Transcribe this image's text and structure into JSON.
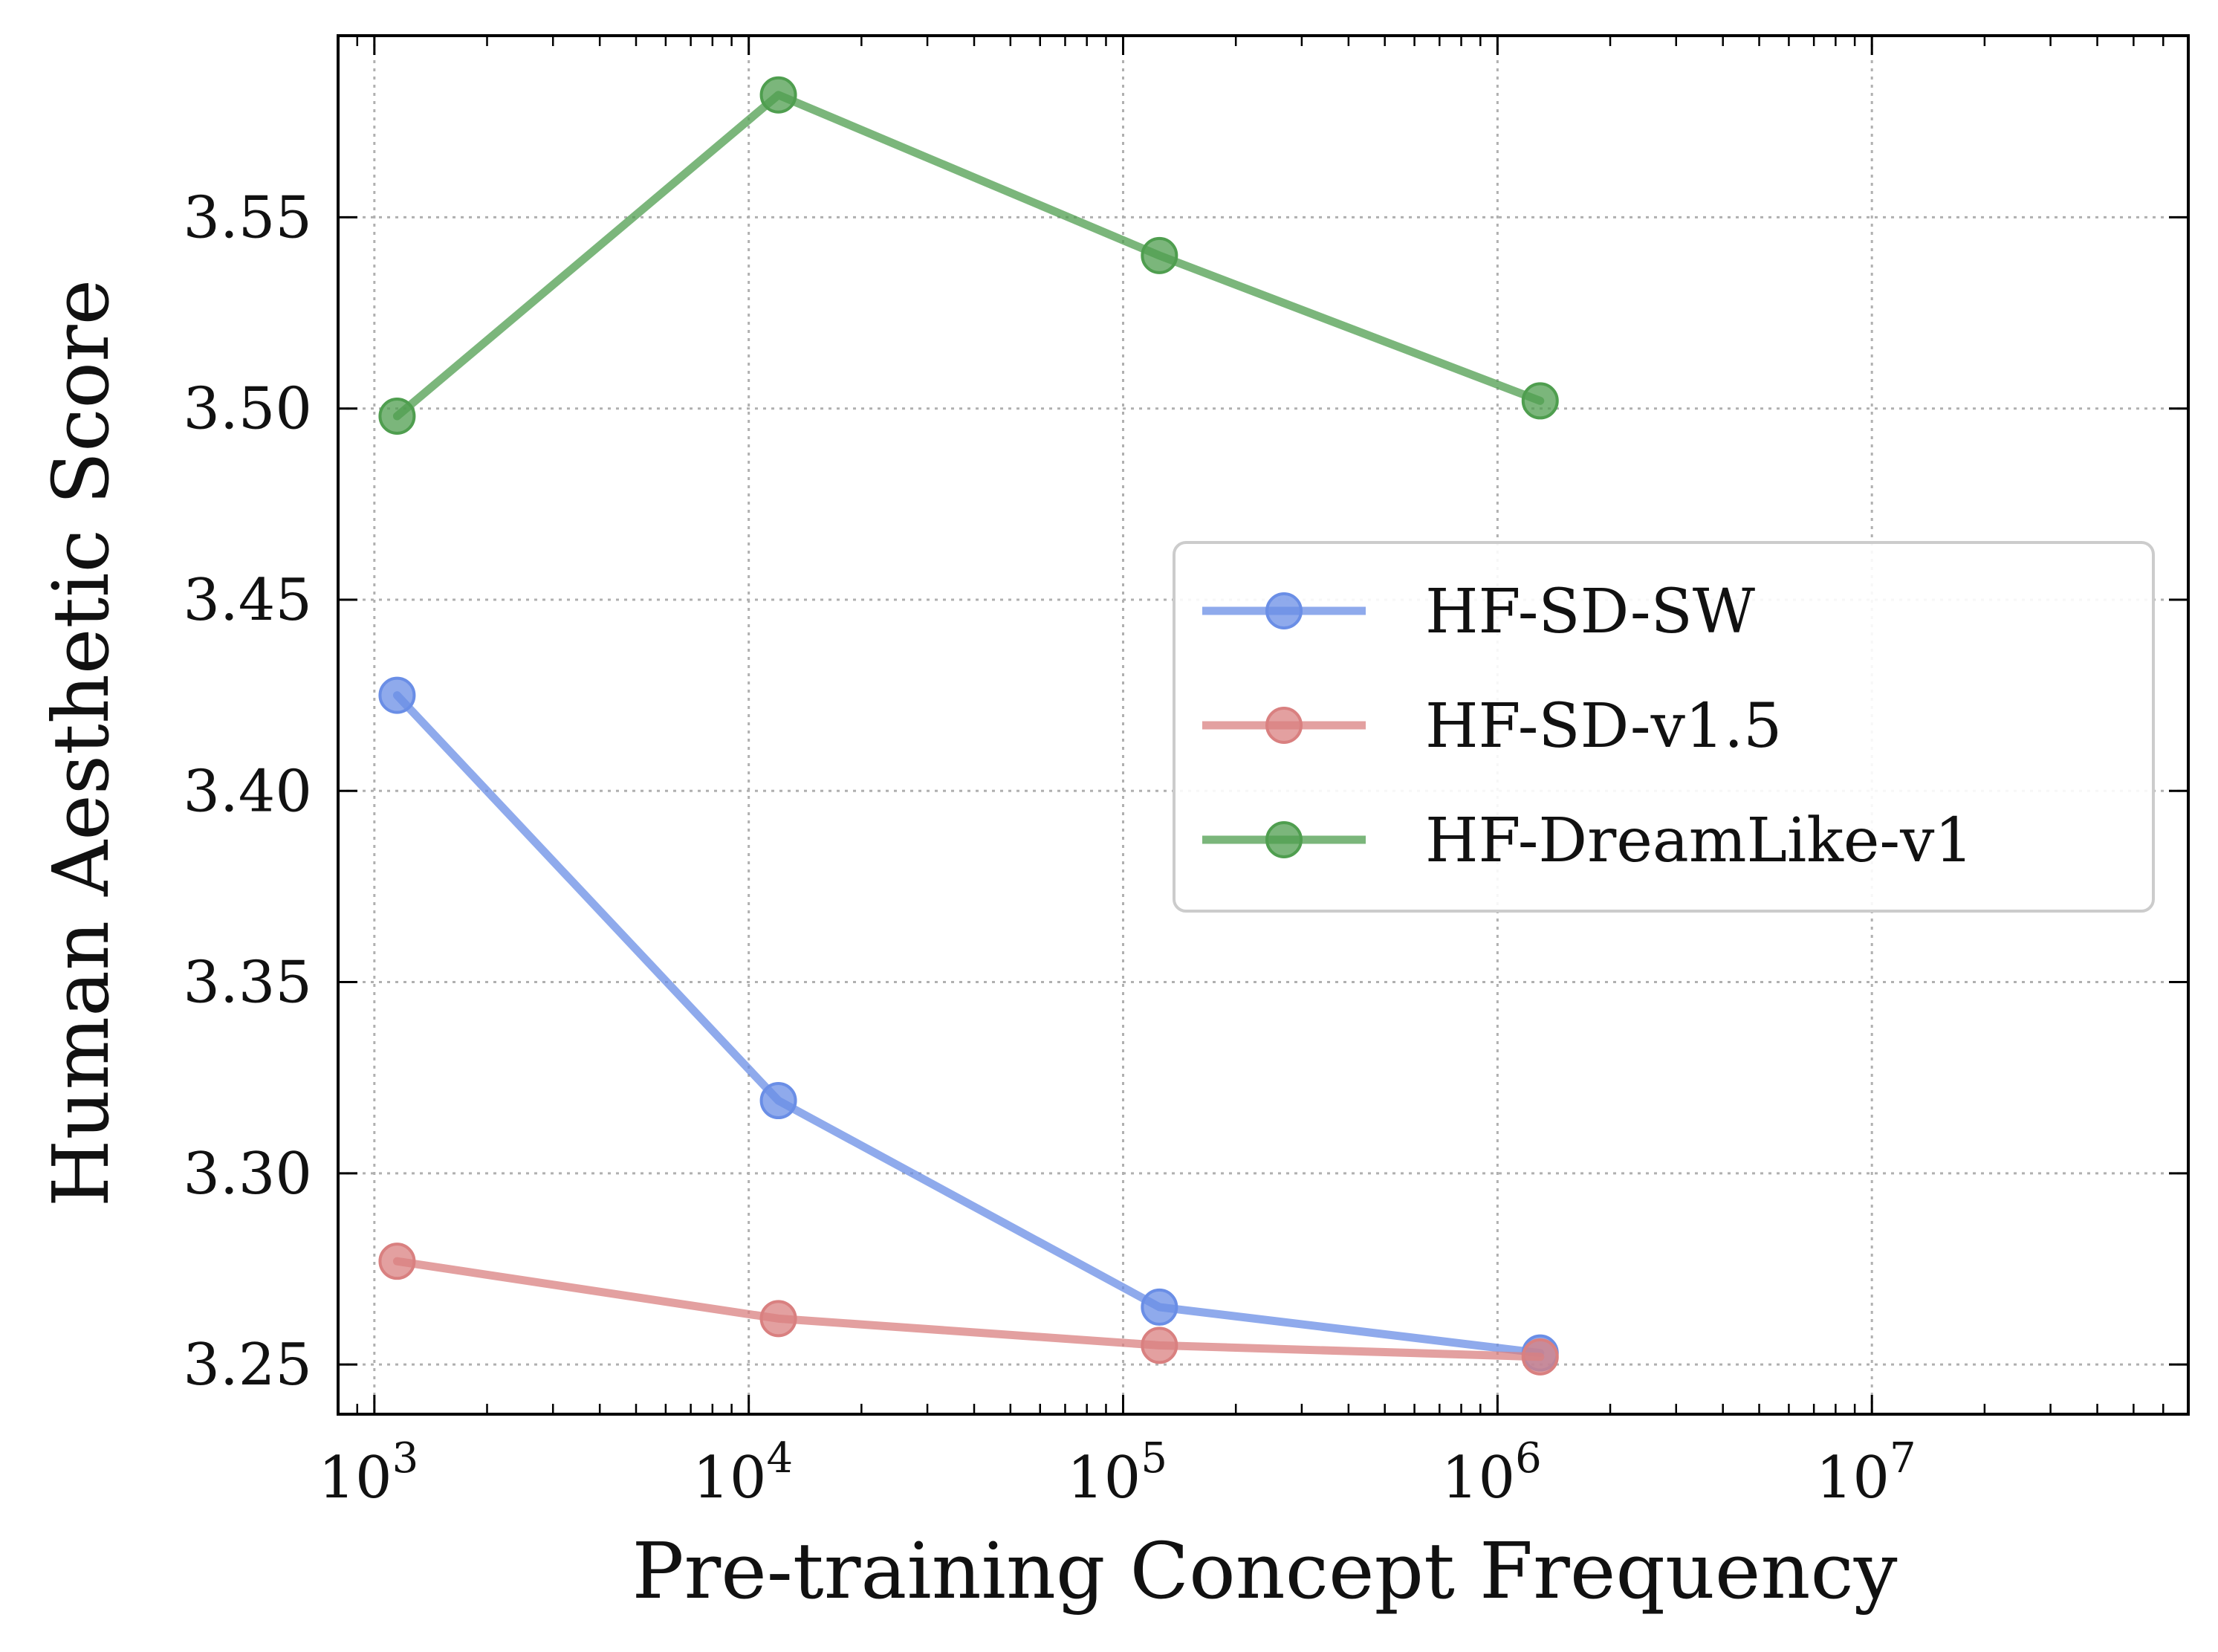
{
  "chart_data": {
    "type": "line",
    "title": "",
    "xlabel": "Pre-training Concept Frequency",
    "ylabel": "Human Aesthetic Score",
    "x_scale": "log",
    "xlim": [
      800,
      70000000
    ],
    "ylim": [
      3.237,
      3.5975
    ],
    "x_ticks": [
      {
        "value": 1000,
        "base": "10",
        "exp": "3"
      },
      {
        "value": 10000,
        "base": "10",
        "exp": "4"
      },
      {
        "value": 100000,
        "base": "10",
        "exp": "5"
      },
      {
        "value": 1000000,
        "base": "10",
        "exp": "6"
      },
      {
        "value": 10000000,
        "base": "10",
        "exp": "7"
      }
    ],
    "y_ticks": [
      {
        "value": 3.25,
        "label": "3.25"
      },
      {
        "value": 3.3,
        "label": "3.30"
      },
      {
        "value": 3.35,
        "label": "3.35"
      },
      {
        "value": 3.4,
        "label": "3.40"
      },
      {
        "value": 3.45,
        "label": "3.45"
      },
      {
        "value": 3.5,
        "label": "3.50"
      },
      {
        "value": 3.55,
        "label": "3.55"
      }
    ],
    "grid": true,
    "legend_position": "center-right",
    "x": [
      1150,
      12000,
      125000,
      1300000
    ],
    "series": [
      {
        "name": "HF-SD-SW",
        "color": "#6a8ee6",
        "values": [
          3.425,
          3.319,
          3.265,
          3.253
        ]
      },
      {
        "name": "HF-SD-v1.5",
        "color": "#d98080",
        "values": [
          3.277,
          3.262,
          3.255,
          3.252
        ]
      },
      {
        "name": "HF-DreamLike-v1",
        "color": "#4f9e4f",
        "values": [
          3.498,
          3.582,
          3.54,
          3.502
        ]
      }
    ]
  }
}
